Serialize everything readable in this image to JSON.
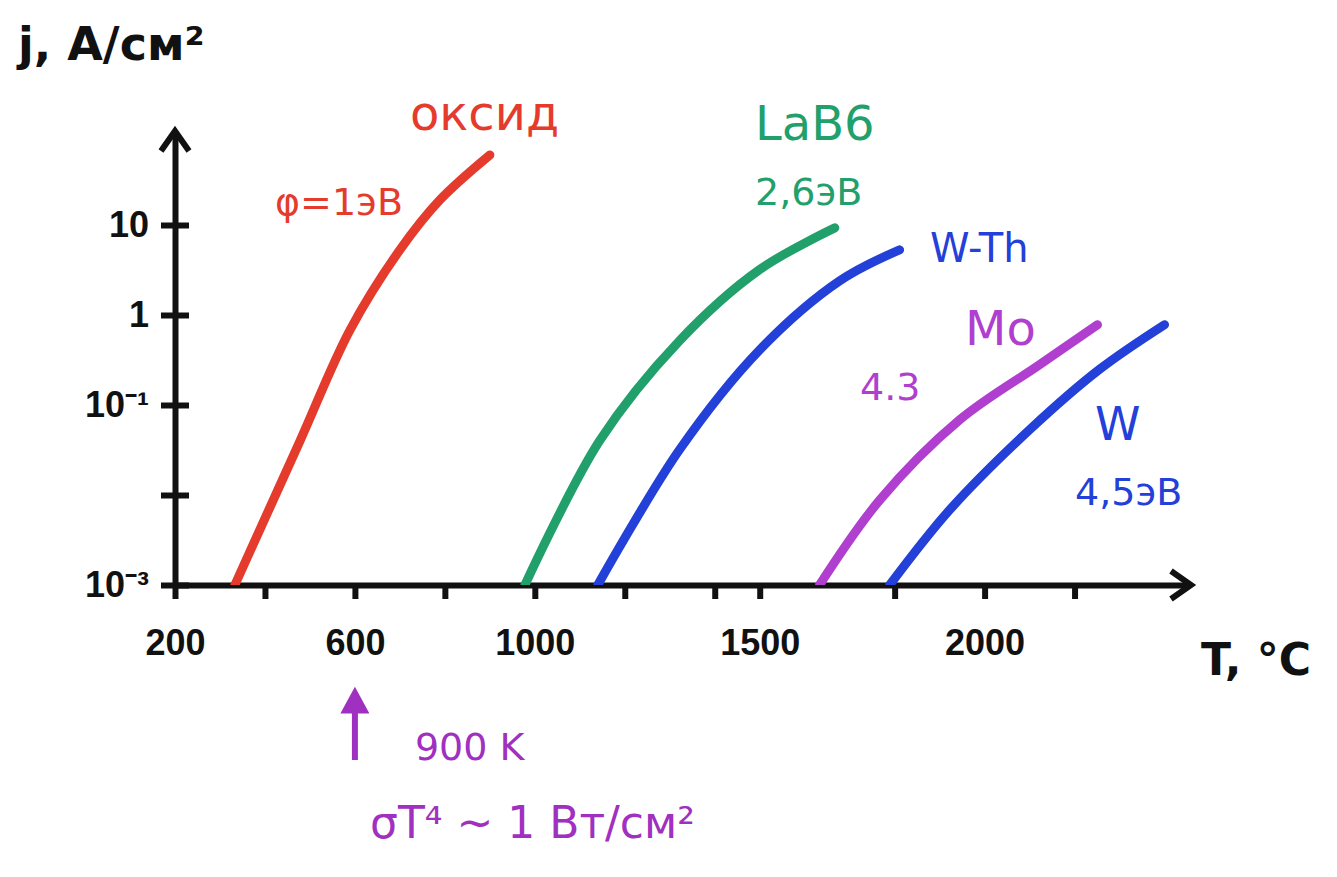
{
  "chart_data": {
    "type": "line",
    "log": "y",
    "ylabel": "j, A/см²",
    "xlabel": "T, °C",
    "xlim": [
      200,
      2450
    ],
    "ylim": [
      0.001,
      100
    ],
    "xticks": [
      200,
      {
        "value": 400,
        "label": null
      },
      600,
      {
        "value": 800,
        "label": null
      },
      1000,
      {
        "value": 1200,
        "label": null
      },
      {
        "value": 1400,
        "label": null
      },
      1500,
      {
        "value": 1800,
        "label": null
      },
      2000,
      {
        "value": 2200,
        "label": null
      }
    ],
    "yticks": [
      {
        "value": 0.001,
        "label": "10⁻³"
      },
      {
        "value": 0.01,
        "label": null
      },
      {
        "value": 0.1,
        "label": "10⁻¹"
      },
      1,
      10
    ],
    "series": [
      {
        "name": "оксид",
        "work_function": "φ=1эВ",
        "color": "#e53b2c",
        "x": [
          333,
          478,
          589,
          700,
          789,
          900
        ],
        "values": [
          0.001,
          0.04,
          0.68,
          5.3,
          19,
          60
        ]
      },
      {
        "name": "LaB6",
        "work_function": "2,6эВ",
        "color": "#22a06b",
        "x": [
          978,
          1144,
          1322,
          1500,
          1667
        ],
        "values": [
          0.001,
          0.04,
          0.52,
          3.2,
          9.3
        ]
      },
      {
        "name": "W-Th",
        "color": "#2340d8",
        "x": [
          1140,
          1322,
          1500,
          1678,
          1811
        ],
        "values": [
          0.001,
          0.032,
          0.41,
          2.4,
          5.3
        ]
      },
      {
        "name": "Mo",
        "work_function": "4.3",
        "color": "#b03fd0",
        "x": [
          1633,
          1767,
          1944,
          2122,
          2251
        ],
        "values": [
          0.001,
          0.0088,
          0.068,
          0.28,
          0.78
        ]
      },
      {
        "name": "W",
        "work_function": "4,5эВ",
        "color": "#2340d8",
        "x": [
          1789,
          1922,
          2100,
          2256,
          2400
        ],
        "values": [
          0.001,
          0.0068,
          0.053,
          0.25,
          0.78
        ]
      }
    ],
    "annotations": [
      {
        "text": "900 K",
        "x": 600,
        "color": "#a030c0"
      },
      {
        "text": "σT⁴ ~ 1 Вт/см²",
        "color": "#a030c0"
      }
    ]
  }
}
